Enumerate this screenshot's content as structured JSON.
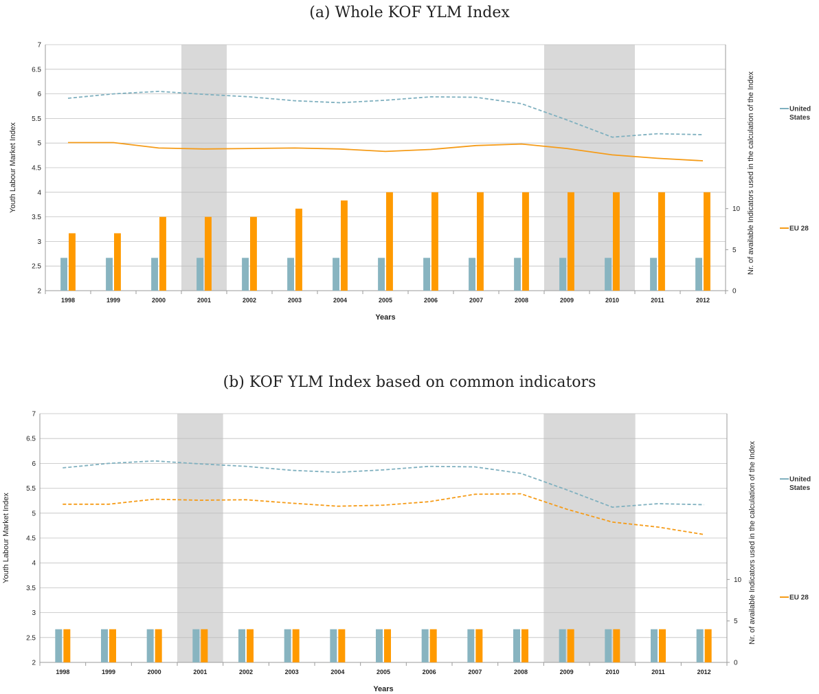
{
  "chart_data": [
    {
      "type": "line",
      "title": "(a) Whole KOF YLM Index",
      "xlabel": "Years",
      "ylabel": "Youth Labour Market Index",
      "y2label": "Nr. of available Indicators used in the calculation of the Index",
      "categories": [
        "1998",
        "1999",
        "2000",
        "2001",
        "2002",
        "2003",
        "2004",
        "2005",
        "2006",
        "2007",
        "2008",
        "2009",
        "2010",
        "2011",
        "2012"
      ],
      "ylim": [
        2,
        7
      ],
      "yticks": [
        "2",
        "2.5",
        "3",
        "3.5",
        "4",
        "4.5",
        "5",
        "5.5",
        "6",
        "6.5",
        "7"
      ],
      "y2lim": [
        0,
        30
      ],
      "y2ticks": [
        "0",
        "5",
        "10"
      ],
      "shaded_periods": [
        [
          "2001",
          "2001"
        ],
        [
          "2009",
          "2010"
        ]
      ],
      "series": [
        {
          "name": "United States",
          "color": "#7fb0bf",
          "style": "dashed",
          "values": [
            5.91,
            6.0,
            6.05,
            5.99,
            5.94,
            5.86,
            5.82,
            5.87,
            5.94,
            5.93,
            5.8,
            5.47,
            5.12,
            5.19,
            5.17
          ]
        },
        {
          "name": "EU 28",
          "color": "#f59b17",
          "style": "solid",
          "values": [
            5.01,
            5.01,
            4.9,
            4.88,
            4.89,
            4.9,
            4.88,
            4.83,
            4.87,
            4.95,
            4.98,
            4.89,
            4.76,
            4.69,
            4.64
          ]
        }
      ],
      "indicator_bars": [
        {
          "name": "United States",
          "color": "#88b4c0",
          "values": [
            4,
            4,
            4,
            4,
            4,
            4,
            4,
            4,
            4,
            4,
            4,
            4,
            4,
            4,
            4
          ]
        },
        {
          "name": "EU 28",
          "color": "#ff9a00",
          "values": [
            7,
            7,
            9,
            9,
            9,
            10,
            11,
            12,
            12,
            12,
            12,
            12,
            12,
            12,
            12
          ]
        }
      ],
      "legend": [
        "United States",
        "EU 28"
      ],
      "legend_position": "right"
    },
    {
      "type": "line",
      "title": "(b) KOF YLM Index based on common indicators",
      "xlabel": "Years",
      "ylabel": "Youth Labour Market Index",
      "y2label": "Nr. of available Indicators used in the calculation of the Index",
      "categories": [
        "1998",
        "1999",
        "2000",
        "2001",
        "2002",
        "2003",
        "2004",
        "2005",
        "2006",
        "2007",
        "2008",
        "2009",
        "2010",
        "2011",
        "2012"
      ],
      "ylim": [
        2,
        7
      ],
      "yticks": [
        "2",
        "2.5",
        "3",
        "3.5",
        "4",
        "4.5",
        "5",
        "5.5",
        "6",
        "6.5",
        "7"
      ],
      "y2lim": [
        0,
        30
      ],
      "y2ticks": [
        "0",
        "5",
        "10"
      ],
      "shaded_periods": [
        [
          "2001",
          "2001"
        ],
        [
          "2009",
          "2010"
        ]
      ],
      "series": [
        {
          "name": "United States",
          "color": "#7fb0bf",
          "style": "dashed",
          "values": [
            5.91,
            6.0,
            6.05,
            5.99,
            5.94,
            5.86,
            5.82,
            5.87,
            5.94,
            5.93,
            5.8,
            5.47,
            5.12,
            5.19,
            5.17
          ]
        },
        {
          "name": "EU 28",
          "color": "#f59b17",
          "style": "dashed",
          "values": [
            5.18,
            5.18,
            5.28,
            5.26,
            5.27,
            5.2,
            5.14,
            5.16,
            5.23,
            5.38,
            5.39,
            5.08,
            4.82,
            4.72,
            4.57
          ]
        }
      ],
      "indicator_bars": [
        {
          "name": "United States",
          "color": "#88b4c0",
          "values": [
            4,
            4,
            4,
            4,
            4,
            4,
            4,
            4,
            4,
            4,
            4,
            4,
            4,
            4,
            4
          ]
        },
        {
          "name": "EU 28",
          "color": "#ff9a00",
          "values": [
            4,
            4,
            4,
            4,
            4,
            4,
            4,
            4,
            4,
            4,
            4,
            4,
            4,
            4,
            4
          ]
        }
      ],
      "legend": [
        "United States",
        "EU 28"
      ],
      "legend_position": "right"
    }
  ]
}
